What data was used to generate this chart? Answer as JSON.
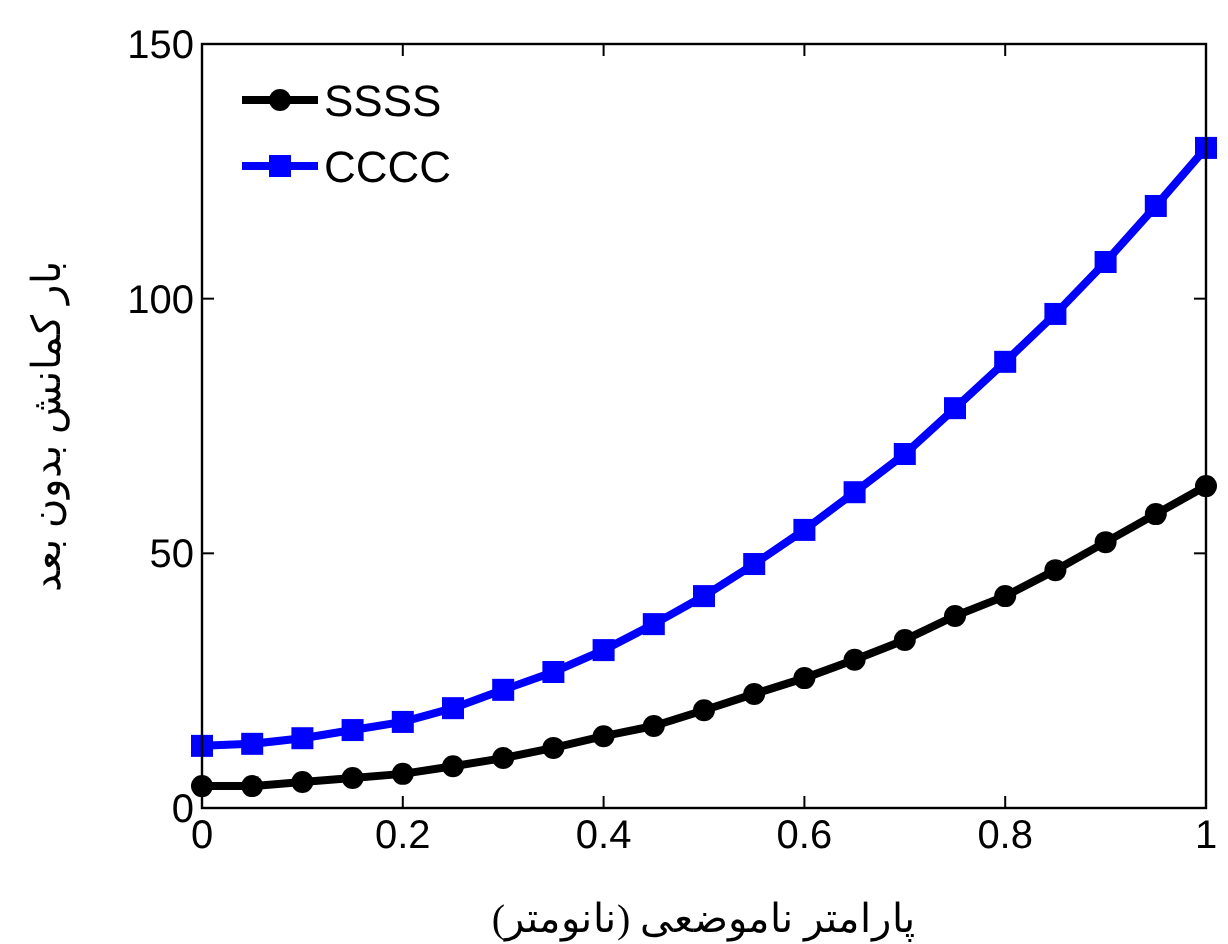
{
  "chart_data": {
    "type": "line",
    "xlabel": "پارامتر ناموضعی (نانومتر)",
    "ylabel": "بار کمانش بدون بعد",
    "x": [
      0,
      0.05,
      0.1,
      0.15,
      0.2,
      0.25,
      0.3,
      0.35,
      0.4,
      0.45,
      0.5,
      0.55,
      0.6,
      0.65,
      0.7,
      0.75,
      0.8,
      0.85,
      0.9,
      0.95,
      1
    ],
    "series": [
      {
        "name": "SSSS",
        "color": "#000000",
        "marker": "circle",
        "values": [
          4.3,
          4.3,
          5.1,
          5.9,
          6.7,
          8.2,
          9.8,
          11.8,
          14.1,
          16.1,
          19.2,
          22.4,
          25.5,
          29.1,
          33,
          37.7,
          41.6,
          46.7,
          52.2,
          57.7,
          63.2
        ]
      },
      {
        "name": "CCCC",
        "color": "#0000ff",
        "marker": "square",
        "values": [
          12.2,
          12.6,
          13.7,
          15.3,
          16.9,
          19.6,
          23.2,
          26.7,
          31,
          36.1,
          41.6,
          47.9,
          54.6,
          62,
          69.5,
          78.5,
          87.6,
          97,
          107.2,
          118.2,
          129.6
        ]
      }
    ],
    "xlim": [
      0,
      1
    ],
    "ylim": [
      0,
      150
    ],
    "xticks": [
      0,
      0.2,
      0.4,
      0.6,
      0.8,
      1
    ],
    "yticks": [
      0,
      50,
      100,
      150
    ],
    "grid": false,
    "legend": "top left",
    "line_style": "solid"
  }
}
